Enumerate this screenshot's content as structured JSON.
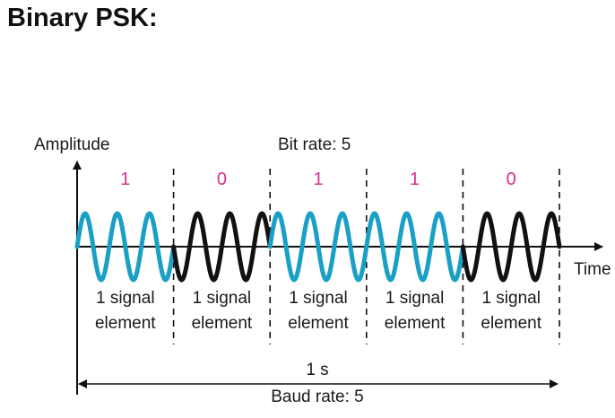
{
  "title": "Binary PSK:",
  "axes": {
    "y_label": "Amplitude",
    "x_label": "Time"
  },
  "bit_rate_label": "Bit rate: 5",
  "duration_label": "1 s",
  "baud_rate_label": "Baud rate: 5",
  "bits": [
    "1",
    "0",
    "1",
    "1",
    "0"
  ],
  "element_label_line1": "1 signal",
  "element_label_line2": "element",
  "cycles_per_element": 3,
  "colors": {
    "phase_0": "#1aa0c4",
    "phase_180": "#111111",
    "bit_text": "#d6308a",
    "axis": "#111111"
  }
}
